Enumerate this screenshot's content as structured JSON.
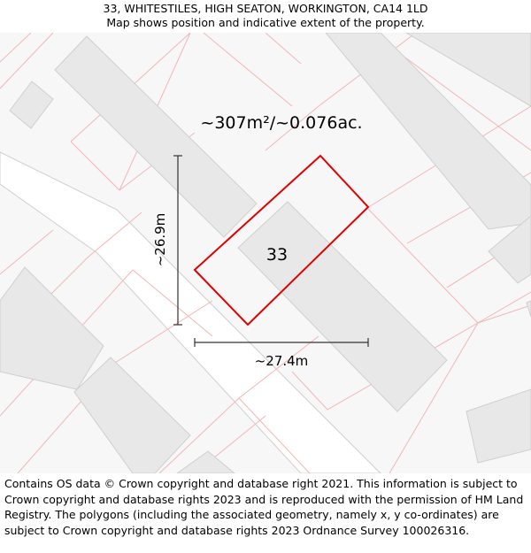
{
  "header": {
    "address": "33, WHITESTILES, HIGH SEATON, WORKINGTON, CA14 1LD",
    "subtitle": "Map shows position and indicative extent of the property."
  },
  "map": {
    "area_label": "~307m²/~0.076ac.",
    "house_number": "33",
    "height_label": "~26.9m",
    "width_label": "~27.4m",
    "colors": {
      "background": "#f7f7f7",
      "road": "#ffffff",
      "building_fill": "#e8e8e8",
      "building_stroke": "#cfcfcf",
      "parcel_line": "#f2b6b6",
      "property_outline": "#e00000"
    }
  },
  "footer": {
    "attribution": "Contains OS data © Crown copyright and database right 2021. This information is subject to Crown copyright and database rights 2023 and is reproduced with the permission of HM Land Registry. The polygons (including the associated geometry, namely x, y co-ordinates) are subject to Crown copyright and database rights 2023 Ordnance Survey 100026316."
  }
}
